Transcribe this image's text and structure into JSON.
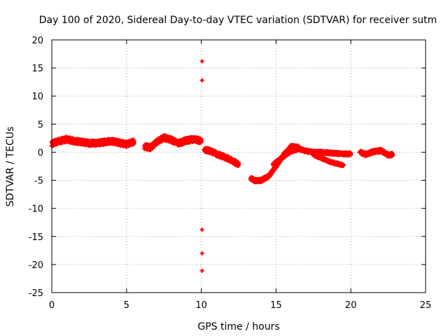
{
  "chart_data": {
    "type": "scatter",
    "title": "Day 100 of 2020, Sidereal Day-to-day VTEC variation (SDTVAR) for receiver sutm",
    "xlabel": "GPS time / hours",
    "ylabel": "SDTVAR / TECUs",
    "xlim": [
      0,
      25
    ],
    "ylim": [
      -25,
      20
    ],
    "x_ticks": [
      0,
      5,
      10,
      15,
      20,
      25
    ],
    "y_ticks": [
      -25,
      -20,
      -15,
      -10,
      -5,
      0,
      5,
      10,
      15,
      20
    ],
    "grid": true,
    "marker_color": "#ff0000",
    "series": [
      {
        "name": "SDTVAR",
        "bands": [
          {
            "x": [
              0.0,
              0.5,
              1.0,
              1.5,
              2.0,
              2.5,
              3.0,
              3.5,
              4.0,
              4.5,
              5.0,
              5.5
            ],
            "y": [
              1.5,
              2.0,
              2.3,
              2.0,
              1.8,
              1.6,
              1.6,
              1.8,
              2.0,
              1.7,
              1.4,
              1.9
            ],
            "spread": 0.9
          },
          {
            "x": [
              6.2,
              6.6,
              7.0,
              7.5,
              8.0,
              8.5,
              9.0,
              9.5,
              10.0
            ],
            "y": [
              1.0,
              0.8,
              1.8,
              2.6,
              2.2,
              1.6,
              2.1,
              2.3,
              2.0
            ],
            "spread": 0.9
          },
          {
            "x": [
              10.2,
              10.6,
              11.0,
              11.5,
              12.0,
              12.5
            ],
            "y": [
              0.5,
              0.2,
              -0.3,
              -0.8,
              -1.4,
              -2.2
            ],
            "spread": 0.8
          },
          {
            "x": [
              13.3,
              13.6,
              14.0,
              14.5,
              15.0,
              15.5,
              16.0,
              16.5
            ],
            "y": [
              -4.6,
              -5.1,
              -5.0,
              -4.3,
              -2.5,
              -0.5,
              1.0,
              0.9
            ],
            "spread": 0.6
          },
          {
            "x": [
              14.8,
              15.2,
              15.6,
              16.0,
              16.5,
              17.0,
              17.5,
              18.0,
              18.5,
              19.0,
              19.5,
              20.0
            ],
            "y": [
              -2.2,
              -1.4,
              -0.6,
              0.2,
              0.6,
              0.2,
              0.0,
              0.0,
              -0.1,
              -0.2,
              -0.3,
              -0.3
            ],
            "spread": 0.5
          },
          {
            "x": [
              17.5,
              18.0,
              18.5,
              19.0,
              19.5
            ],
            "y": [
              -0.5,
              -1.0,
              -1.6,
              -2.0,
              -2.3
            ],
            "spread": 0.4
          },
          {
            "x": [
              20.6,
              21.0,
              21.5,
              22.0,
              22.5,
              22.8
            ],
            "y": [
              0.0,
              -0.4,
              0.1,
              0.3,
              -0.5,
              -0.4
            ],
            "spread": 0.6
          }
        ],
        "outliers": [
          {
            "x": 10.05,
            "y": 16.2
          },
          {
            "x": 10.05,
            "y": 12.8
          },
          {
            "x": 10.05,
            "y": -13.8
          },
          {
            "x": 10.05,
            "y": -18.0
          },
          {
            "x": 10.05,
            "y": -21.1
          }
        ]
      }
    ]
  }
}
